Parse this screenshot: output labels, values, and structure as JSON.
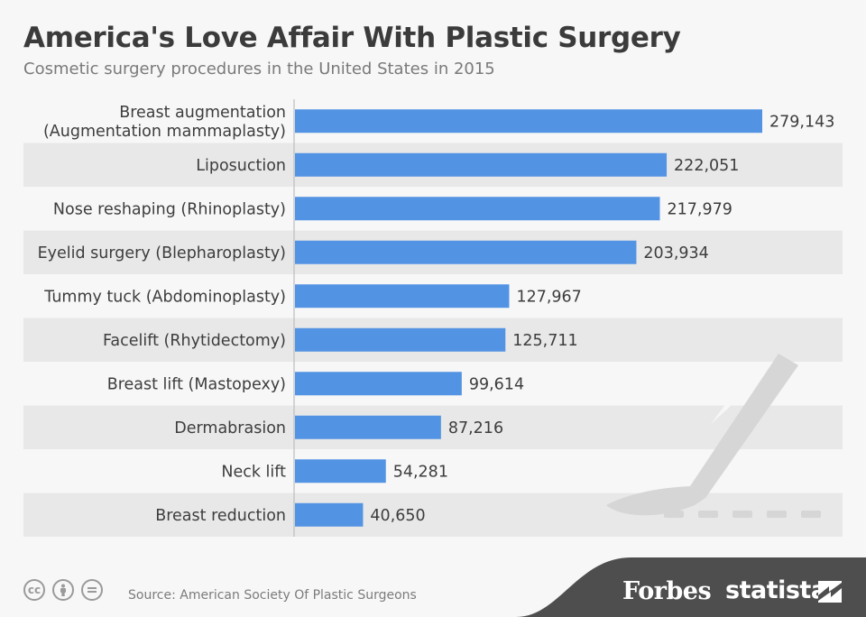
{
  "title": "America's Love Affair With Plastic Surgery",
  "subtitle": "Cosmetic surgery procedures in the United States in 2015",
  "source": "Source: American Society Of Plastic Surgeons",
  "brands": {
    "forbes": "Forbes",
    "statista": "statista"
  },
  "license_icons": [
    "cc-icon",
    "attribution-icon",
    "no-derivatives-icon"
  ],
  "colors": {
    "bar": "#5393e3",
    "stripe": "#e8e8e8",
    "background": "#f7f7f7",
    "scalpel": "#d8d8d8"
  },
  "chart_data": {
    "type": "bar",
    "orientation": "horizontal",
    "categories": [
      [
        "Breast augmentation",
        "(Augmentation mammaplasty)"
      ],
      [
        "Liposuction"
      ],
      [
        "Nose reshaping (Rhinoplasty)"
      ],
      [
        "Eyelid surgery (Blepharoplasty)"
      ],
      [
        "Tummy tuck (Abdominoplasty)"
      ],
      [
        "Facelift (Rhytidectomy)"
      ],
      [
        "Breast lift (Mastopexy)"
      ],
      [
        "Dermabrasion"
      ],
      [
        "Neck lift"
      ],
      [
        "Breast reduction"
      ]
    ],
    "values": [
      279143,
      222051,
      217979,
      203934,
      127967,
      125711,
      99614,
      87216,
      54281,
      40650
    ],
    "value_labels": [
      "279,143",
      "222,051",
      "217,979",
      "203,934",
      "127,967",
      "125,711",
      "99,614",
      "87,216",
      "54,281",
      "40,650"
    ],
    "xlim": [
      0,
      279143
    ],
    "grid": false,
    "legend": "none"
  }
}
